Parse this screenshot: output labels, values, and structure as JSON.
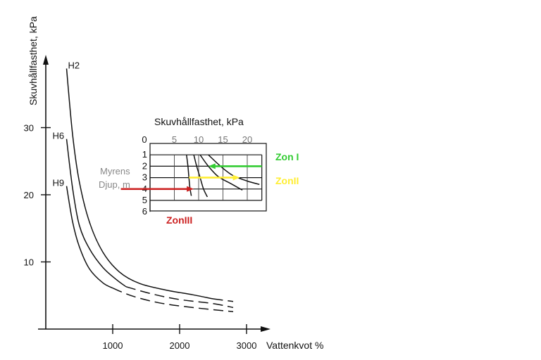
{
  "chart_data": [
    {
      "type": "line",
      "title": "",
      "xlabel": "Vattenkvot %",
      "ylabel": "Skuvhållfasthet, kPa",
      "xlim": [
        0,
        3000
      ],
      "ylim": [
        0,
        42
      ],
      "x_ticks": [
        "1000",
        "2000",
        "3000"
      ],
      "y_ticks": [
        "10",
        "20",
        "30"
      ],
      "grid": false,
      "series": [
        {
          "name": "H2",
          "solid": [
            [
              310,
              38.8
            ],
            [
              400,
              29
            ],
            [
              500,
              22
            ],
            [
              650,
              16
            ],
            [
              850,
              11.5
            ],
            [
              1100,
              8.5
            ],
            [
              1400,
              6.8
            ],
            [
              1800,
              5.8
            ],
            [
              2200,
              5.1
            ],
            [
              2500,
              4.5
            ]
          ],
          "dashed": [
            [
              2500,
              4.5
            ],
            [
              2800,
              4.1
            ]
          ]
        },
        {
          "name": "H6",
          "solid": [
            [
              310,
              28.3
            ],
            [
              400,
              21
            ],
            [
              500,
              15.5
            ],
            [
              650,
              12
            ],
            [
              850,
              9.2
            ],
            [
              1050,
              7.4
            ],
            [
              1200,
              6.3
            ]
          ],
          "dashed": [
            [
              1200,
              6.3
            ],
            [
              1600,
              5.2
            ],
            [
              2000,
              4.4
            ],
            [
              2500,
              3.8
            ],
            [
              2800,
              3.2
            ]
          ]
        },
        {
          "name": "H9",
          "solid": [
            [
              310,
              21.3
            ],
            [
              400,
              16
            ],
            [
              500,
              12.3
            ],
            [
              650,
              9
            ],
            [
              850,
              6.9
            ],
            [
              1000,
              6.1
            ]
          ],
          "dashed": [
            [
              1000,
              6.1
            ],
            [
              1300,
              4.9
            ],
            [
              1700,
              3.9
            ],
            [
              2200,
              3.2
            ],
            [
              2800,
              2.6
            ]
          ]
        }
      ]
    },
    {
      "type": "line",
      "title": "Skuvhållfasthet, kPa",
      "xlabel": "Skuvhållfasthet, kPa",
      "ylabel": "Myrens Djup, m",
      "ylabel_lines": [
        "Myrens",
        "Djup, m"
      ],
      "xlim": [
        0,
        23
      ],
      "ylim": [
        0,
        6
      ],
      "x_ticks": [
        "0",
        "5",
        "10",
        "15",
        "20"
      ],
      "y_ticks": [
        "1",
        "2",
        "3",
        "4",
        "5",
        "6"
      ],
      "series": [
        {
          "name": "",
          "points": [
            [
              7.5,
              1.0
            ],
            [
              7.8,
              2.0
            ],
            [
              8.0,
              3.0
            ],
            [
              8.2,
              3.9
            ],
            [
              8.5,
              4.6
            ]
          ]
        },
        {
          "name": "",
          "points": [
            [
              9.0,
              1.0
            ],
            [
              9.6,
              2.0
            ],
            [
              10.3,
              3.0
            ],
            [
              11.0,
              4.0
            ],
            [
              11.8,
              4.7
            ]
          ]
        },
        {
          "name": "",
          "points": [
            [
              10.3,
              1.0
            ],
            [
              12.0,
              2.0
            ],
            [
              14.0,
              2.9
            ],
            [
              16.5,
              3.5
            ],
            [
              19.0,
              4.1
            ]
          ]
        },
        {
          "name": "",
          "points": [
            [
              12.0,
              1.0
            ],
            [
              14.5,
              2.0
            ],
            [
              17.0,
              2.8
            ],
            [
              20.0,
              3.3
            ],
            [
              22.5,
              3.6
            ]
          ]
        }
      ],
      "zones": [
        {
          "label": "Zon I",
          "color": "#33cc33",
          "depth": 2.0,
          "from": 23,
          "to": 12
        },
        {
          "label": "ZonII",
          "color": "#ffee33",
          "depth": 3.0,
          "from": 8.0,
          "to": 18.5
        },
        {
          "label": "ZonIII",
          "color": "#cc2222",
          "depth": 4.0,
          "from": -6,
          "to": 9.0
        }
      ]
    }
  ]
}
